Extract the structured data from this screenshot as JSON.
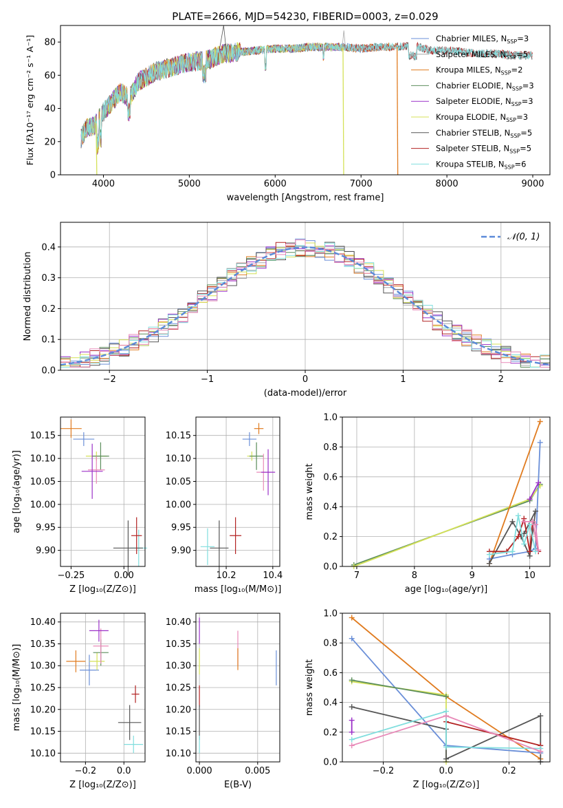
{
  "figure_title": "PLATE=2666, MJD=54230, FIBERID=0003, z=0.029",
  "colors": {
    "Chabrier MILES": "#6a8fd8",
    "Salpeter MILES": "#a7a7a7",
    "Kroupa MILES": "#e07b1f",
    "Chabrier ELODIE": "#5b8d5b",
    "Salpeter ELODIE": "#9b30c8",
    "Kroupa ELODIE": "#d4e157",
    "Chabrier STELIB": "#555555",
    "Salpeter STELIB": "#b22222",
    "Kroupa STELIB": "#80dede",
    "pink": "#e889b8",
    "gaussian": "#5b8ad8"
  },
  "chart_data": [
    {
      "id": "spectrum",
      "type": "line",
      "title": "PLATE=2666, MJD=54230, FIBERID=0003, z=0.029",
      "xlabel": "wavelength [Angstrom, rest frame]",
      "ylabel": "Flux [fλ10⁻¹⁷ erg cm⁻² s⁻¹ A⁻¹]",
      "xlim": [
        3500,
        9200
      ],
      "ylim": [
        0,
        90
      ],
      "xticks": [
        4000,
        5000,
        6000,
        7000,
        8000,
        9000
      ],
      "yticks": [
        0,
        20,
        40,
        60,
        80
      ],
      "legend_position": "top-right",
      "legend": [
        {
          "label": "Chabrier MILES, N",
          "n": "3",
          "color": "Chabrier MILES"
        },
        {
          "label": "Salpeter MILES, N",
          "n": "5",
          "color": "Salpeter MILES"
        },
        {
          "label": "Kroupa MILES, N",
          "n": "2",
          "color": "Kroupa MILES"
        },
        {
          "label": "Chabrier ELODIE, N",
          "n": "3",
          "color": "Chabrier ELODIE"
        },
        {
          "label": "Salpeter ELODIE, N",
          "n": "3",
          "color": "Salpeter ELODIE"
        },
        {
          "label": "Kroupa ELODIE, N",
          "n": "3",
          "color": "Kroupa ELODIE"
        },
        {
          "label": "Chabrier STELIB, N",
          "n": "5",
          "color": "Chabrier STELIB"
        },
        {
          "label": "Salpeter STELIB, N",
          "n": "5",
          "color": "Salpeter STELIB"
        },
        {
          "label": "Kroupa STELIB, N",
          "n": "6",
          "color": "Kroupa STELIB"
        }
      ],
      "legend_sub": "SSP",
      "continuum": [
        [
          3720,
          20
        ],
        [
          3800,
          28
        ],
        [
          3900,
          30
        ],
        [
          4000,
          38
        ],
        [
          4100,
          44
        ],
        [
          4200,
          50
        ],
        [
          4300,
          46
        ],
        [
          4400,
          56
        ],
        [
          4600,
          62
        ],
        [
          4800,
          65
        ],
        [
          5000,
          68
        ],
        [
          5200,
          69
        ],
        [
          5400,
          73
        ],
        [
          5600,
          74
        ],
        [
          5800,
          75
        ],
        [
          6000,
          76
        ],
        [
          6200,
          76
        ],
        [
          6400,
          77
        ],
        [
          6600,
          77
        ],
        [
          6800,
          77
        ],
        [
          7000,
          76
        ],
        [
          7200,
          77
        ],
        [
          7400,
          77
        ],
        [
          7600,
          78
        ],
        [
          7800,
          75
        ],
        [
          8000,
          75
        ],
        [
          8200,
          74
        ],
        [
          8400,
          73
        ],
        [
          8600,
          73
        ],
        [
          8800,
          72
        ],
        [
          9000,
          72
        ]
      ],
      "drops": [
        {
          "x": 3915,
          "to": 0,
          "color": "Kroupa ELODIE"
        },
        {
          "x": 6790,
          "to": 0,
          "color": "Kroupa ELODIE"
        },
        {
          "x": 7420,
          "to": 0,
          "color": "Kroupa MILES"
        }
      ]
    },
    {
      "id": "residuals",
      "type": "line",
      "xlabel": "(data-model)/error",
      "ylabel": "Normed distribution",
      "xlim": [
        -2.5,
        2.5
      ],
      "ylim": [
        0,
        0.48
      ],
      "xticks": [
        -2,
        -1,
        0,
        1,
        2
      ],
      "xticklabels": [
        "−2",
        "−1",
        "0",
        "1",
        "2"
      ],
      "yticks": [
        0,
        0.1,
        0.2,
        0.3,
        0.4
      ],
      "yticklabels": [
        "0.0",
        "0.1",
        "0.2",
        "0.3",
        "0.4"
      ],
      "legend_label": "𝒩(0, 1)",
      "legend_position": "top-right",
      "bin_width": 0.1
    },
    {
      "id": "age_vs_Z",
      "type": "scatter",
      "xlabel": "Z [log₁₀(Z/Z⊙)]",
      "ylabel": "age  [log₁₀(age/yr)]",
      "xlim": [
        -0.3,
        0.1
      ],
      "ylim": [
        9.865,
        10.19
      ],
      "xticks": [
        -0.25,
        0.0
      ],
      "xticklabels": [
        "−0.25",
        "0.00"
      ],
      "yticks": [
        9.9,
        9.95,
        10.0,
        10.05,
        10.1,
        10.15
      ],
      "yticklabels": [
        "9.90",
        "9.95",
        "10.00",
        "10.05",
        "10.10",
        "10.15"
      ],
      "points": [
        {
          "x": -0.25,
          "y": 10.165,
          "xerr": 0.05,
          "yerr": 0.02,
          "color": "Kroupa MILES"
        },
        {
          "x": -0.19,
          "y": 10.142,
          "xerr": 0.05,
          "yerr": 0.015,
          "color": "Chabrier MILES"
        },
        {
          "x": -0.13,
          "y": 10.105,
          "xerr": 0.05,
          "yerr": 0.01,
          "color": "Kroupa ELODIE"
        },
        {
          "x": -0.11,
          "y": 10.105,
          "xerr": 0.04,
          "yerr": 0.03,
          "color": "Chabrier ELODIE"
        },
        {
          "x": -0.13,
          "y": 10.075,
          "xerr": 0.04,
          "yerr": 0.03,
          "color": "pink"
        },
        {
          "x": -0.15,
          "y": 10.072,
          "xerr": 0.05,
          "yerr": 0.06,
          "color": "Salpeter ELODIE"
        },
        {
          "x": 0.07,
          "y": 9.905,
          "xerr": 0.04,
          "yerr": 0.04,
          "color": "Kroupa STELIB"
        },
        {
          "x": 0.02,
          "y": 9.905,
          "xerr": 0.07,
          "yerr": 0.06,
          "color": "Chabrier STELIB"
        },
        {
          "x": 0.06,
          "y": 9.932,
          "xerr": 0.025,
          "yerr": 0.04,
          "color": "Salpeter STELIB"
        }
      ]
    },
    {
      "id": "age_vs_mass",
      "type": "scatter",
      "xlabel": "mass [log₁₀(M/M⊙)]",
      "ylabel": "",
      "xlim": [
        10.07,
        10.43
      ],
      "ylim": [
        9.865,
        10.19
      ],
      "xticks": [
        10.2,
        10.4
      ],
      "xticklabels": [
        "10.2",
        "10.4"
      ],
      "yticks": [
        9.9,
        9.95,
        10.0,
        10.05,
        10.1,
        10.15
      ],
      "yticklabels": [
        "9.90",
        "9.95",
        "10.00",
        "10.05",
        "10.10",
        "10.15"
      ],
      "points": [
        {
          "x": 10.34,
          "y": 10.165,
          "xerr": 0.02,
          "yerr": 0.012,
          "color": "Kroupa MILES"
        },
        {
          "x": 10.3,
          "y": 10.142,
          "xerr": 0.03,
          "yerr": 0.015,
          "color": "Chabrier MILES"
        },
        {
          "x": 10.31,
          "y": 10.105,
          "xerr": 0.02,
          "yerr": 0.01,
          "color": "Kroupa ELODIE"
        },
        {
          "x": 10.33,
          "y": 10.105,
          "xerr": 0.03,
          "yerr": 0.03,
          "color": "Chabrier ELODIE"
        },
        {
          "x": 10.36,
          "y": 10.07,
          "xerr": 0.03,
          "yerr": 0.04,
          "color": "pink"
        },
        {
          "x": 10.38,
          "y": 10.07,
          "xerr": 0.03,
          "yerr": 0.05,
          "color": "Salpeter ELODIE"
        },
        {
          "x": 10.12,
          "y": 9.908,
          "xerr": 0.03,
          "yerr": 0.04,
          "color": "Kroupa STELIB"
        },
        {
          "x": 10.17,
          "y": 9.905,
          "xerr": 0.04,
          "yerr": 0.06,
          "color": "Chabrier STELIB"
        },
        {
          "x": 10.24,
          "y": 9.932,
          "xerr": 0.025,
          "yerr": 0.04,
          "color": "Salpeter STELIB"
        }
      ]
    },
    {
      "id": "mass_vs_Z",
      "type": "scatter",
      "xlabel": "Z [log₁₀(Z/Z⊙)]",
      "ylabel": "mass [log₁₀(M/M⊙)]",
      "xlim": [
        -0.33,
        0.11
      ],
      "ylim": [
        10.08,
        10.42
      ],
      "xticks": [
        -0.2,
        0.0
      ],
      "xticklabels": [
        "−0.2",
        "0.0"
      ],
      "yticks": [
        10.1,
        10.15,
        10.2,
        10.25,
        10.3,
        10.35,
        10.4
      ],
      "yticklabels": [
        "10.10",
        "10.15",
        "10.20",
        "10.25",
        "10.30",
        "10.35",
        "10.40"
      ],
      "points": [
        {
          "x": -0.25,
          "y": 10.31,
          "xerr": 0.05,
          "yerr": 0.025,
          "color": "Kroupa MILES"
        },
        {
          "x": -0.18,
          "y": 10.29,
          "xerr": 0.05,
          "yerr": 0.035,
          "color": "Chabrier MILES"
        },
        {
          "x": -0.14,
          "y": 10.31,
          "xerr": 0.04,
          "yerr": 0.02,
          "color": "Kroupa ELODIE"
        },
        {
          "x": -0.12,
          "y": 10.33,
          "xerr": 0.04,
          "yerr": 0.03,
          "color": "Chabrier ELODIE"
        },
        {
          "x": -0.12,
          "y": 10.345,
          "xerr": 0.04,
          "yerr": 0.04,
          "color": "pink"
        },
        {
          "x": -0.13,
          "y": 10.38,
          "xerr": 0.05,
          "yerr": 0.025,
          "color": "Salpeter ELODIE"
        },
        {
          "x": 0.05,
          "y": 10.12,
          "xerr": 0.05,
          "yerr": 0.02,
          "color": "Kroupa STELIB"
        },
        {
          "x": 0.03,
          "y": 10.17,
          "xerr": 0.06,
          "yerr": 0.04,
          "color": "Chabrier STELIB"
        },
        {
          "x": 0.06,
          "y": 10.235,
          "xerr": 0.02,
          "yerr": 0.02,
          "color": "Salpeter STELIB"
        }
      ]
    },
    {
      "id": "mass_vs_ebv",
      "type": "scatter",
      "xlabel": "E(B-V)",
      "ylabel": "",
      "xlim": [
        -0.0003,
        0.0069
      ],
      "ylim": [
        10.08,
        10.42
      ],
      "xticks": [
        0.0,
        0.005
      ],
      "xticklabels": [
        "0.000",
        "0.005"
      ],
      "yticks": [
        10.1,
        10.15,
        10.2,
        10.25,
        10.3,
        10.35,
        10.4
      ],
      "yticklabels": [
        "10.10",
        "10.15",
        "10.20",
        "10.25",
        "10.30",
        "10.35",
        "10.40"
      ],
      "points": [
        {
          "x": 0.0,
          "y": 10.38,
          "xerr": 0,
          "yerr": 0.03,
          "color": "Salpeter ELODIE"
        },
        {
          "x": 0.0,
          "y": 10.31,
          "xerr": 0,
          "yerr": 0.03,
          "color": "Kroupa ELODIE"
        },
        {
          "x": 0.0,
          "y": 10.23,
          "xerr": 0,
          "yerr": 0.025,
          "color": "Salpeter STELIB"
        },
        {
          "x": 0.0,
          "y": 10.17,
          "xerr": 0,
          "yerr": 0.04,
          "color": "Chabrier STELIB"
        },
        {
          "x": 0.0,
          "y": 10.12,
          "xerr": 0,
          "yerr": 0.02,
          "color": "Kroupa STELIB"
        },
        {
          "x": 0.0033,
          "y": 10.34,
          "xerr": 0,
          "yerr": 0.04,
          "color": "pink"
        },
        {
          "x": 0.0033,
          "y": 10.315,
          "xerr": 0,
          "yerr": 0.025,
          "color": "Kroupa MILES"
        },
        {
          "x": 0.0066,
          "y": 10.295,
          "xerr": 0,
          "yerr": 0.04,
          "color": "Chabrier MILES"
        }
      ]
    },
    {
      "id": "weight_vs_age",
      "type": "line",
      "xlabel": "age  [log₁₀(age/yr)]",
      "ylabel": "mass weight",
      "xlim": [
        6.75,
        10.35
      ],
      "ylim": [
        0,
        1.0
      ],
      "xticks": [
        7,
        8,
        9,
        10
      ],
      "xticklabels": [
        "7",
        "8",
        "9",
        "10"
      ],
      "yticks": [
        0,
        0.2,
        0.4,
        0.6,
        0.8,
        1.0
      ],
      "yticklabels": [
        "0.0",
        "0.2",
        "0.4",
        "0.6",
        "0.8",
        "1.0"
      ],
      "series": [
        {
          "color": "Chabrier ELODIE",
          "points": [
            [
              6.95,
              0.01
            ],
            [
              10.0,
              0.44
            ],
            [
              10.18,
              0.55
            ]
          ]
        },
        {
          "color": "Kroupa ELODIE",
          "points": [
            [
              6.95,
              0.0
            ],
            [
              10.0,
              0.45
            ],
            [
              10.18,
              0.54
            ]
          ]
        },
        {
          "color": "Kroupa MILES",
          "points": [
            [
              9.3,
              0.02
            ],
            [
              10.18,
              0.97
            ]
          ]
        },
        {
          "color": "Chabrier MILES",
          "points": [
            [
              9.3,
              0.05
            ],
            [
              9.7,
              0.08
            ],
            [
              10.0,
              0.1
            ],
            [
              10.1,
              0.12
            ],
            [
              10.18,
              0.83
            ]
          ]
        },
        {
          "color": "Chabrier STELIB",
          "points": [
            [
              9.3,
              0.02
            ],
            [
              9.7,
              0.3
            ],
            [
              9.85,
              0.2
            ],
            [
              10.0,
              0.07
            ],
            [
              10.1,
              0.37
            ],
            [
              9.9,
              0.22
            ]
          ]
        },
        {
          "color": "Salpeter STELIB",
          "points": [
            [
              9.3,
              0.1
            ],
            [
              9.6,
              0.1
            ],
            [
              9.8,
              0.2
            ],
            [
              9.9,
              0.32
            ],
            [
              10.0,
              0.1
            ],
            [
              10.05,
              0.3
            ],
            [
              10.15,
              0.1
            ]
          ]
        },
        {
          "color": "Kroupa STELIB",
          "points": [
            [
              9.3,
              0.08
            ],
            [
              9.7,
              0.1
            ],
            [
              9.8,
              0.34
            ],
            [
              9.9,
              0.15
            ],
            [
              10.0,
              0.28
            ],
            [
              10.1,
              0.1
            ]
          ]
        },
        {
          "color": "pink",
          "points": [
            [
              9.9,
              0.3
            ],
            [
              10.05,
              0.3
            ],
            [
              10.15,
              0.11
            ],
            [
              10.1,
              0.28
            ]
          ]
        },
        {
          "color": "Salpeter ELODIE",
          "points": [
            [
              10.0,
              0.45
            ],
            [
              10.15,
              0.56
            ]
          ]
        }
      ]
    },
    {
      "id": "weight_vs_Z",
      "type": "line",
      "xlabel": "Z [log₁₀(Z/Z⊙)]",
      "ylabel": "mass weight",
      "xlim": [
        -0.33,
        0.33
      ],
      "ylim": [
        0,
        1.0
      ],
      "xticks": [
        -0.2,
        0.0,
        0.2
      ],
      "xticklabels": [
        "−0.2",
        "0.0",
        "0.2"
      ],
      "yticks": [
        0,
        0.2,
        0.4,
        0.6,
        0.8,
        1.0
      ],
      "yticklabels": [
        "0.0",
        "0.2",
        "0.4",
        "0.6",
        "0.8",
        "1.0"
      ],
      "series": [
        {
          "color": "Kroupa MILES",
          "points": [
            [
              -0.3,
              0.97
            ],
            [
              0.0,
              0.44
            ],
            [
              0.3,
              0.02
            ]
          ]
        },
        {
          "color": "Chabrier MILES",
          "points": [
            [
              -0.3,
              0.83
            ],
            [
              0.0,
              0.11
            ],
            [
              0.3,
              0.06
            ]
          ]
        },
        {
          "color": "Kroupa ELODIE",
          "points": [
            [
              -0.3,
              0.54
            ],
            [
              0.0,
              0.45
            ],
            [
              0.0,
              0.0
            ]
          ]
        },
        {
          "color": "Chabrier ELODIE",
          "points": [
            [
              -0.3,
              0.55
            ],
            [
              0.0,
              0.44
            ]
          ]
        },
        {
          "color": "Chabrier STELIB",
          "points": [
            [
              -0.3,
              0.37
            ],
            [
              0.0,
              0.22
            ],
            [
              0.0,
              0.02
            ],
            [
              0.3,
              0.31
            ],
            [
              0.3,
              0.0
            ]
          ]
        },
        {
          "color": "Salpeter STELIB",
          "points": [
            [
              0.0,
              0.27
            ],
            [
              0.3,
              0.11
            ]
          ]
        },
        {
          "color": "Kroupa STELIB",
          "points": [
            [
              -0.3,
              0.15
            ],
            [
              0.0,
              0.34
            ],
            [
              0.0,
              0.1
            ],
            [
              0.3,
              0.09
            ]
          ]
        },
        {
          "color": "pink",
          "points": [
            [
              -0.3,
              0.11
            ],
            [
              0.0,
              0.31
            ],
            [
              0.3,
              0.07
            ]
          ]
        },
        {
          "color": "Salpeter ELODIE",
          "points": [
            [
              -0.3,
              0.2
            ],
            [
              -0.3,
              0.28
            ]
          ]
        }
      ]
    }
  ]
}
